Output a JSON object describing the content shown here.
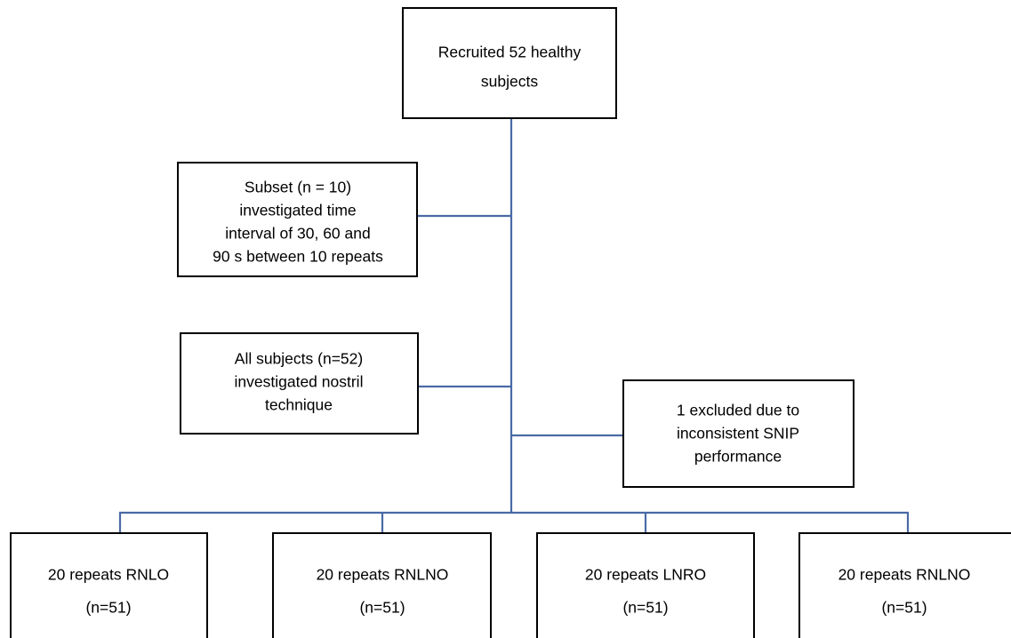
{
  "nodes": [
    {
      "lines": [
        "Recruited 52 healthy",
        "subjects"
      ]
    },
    {
      "lines": [
        "Subset (n = 10)",
        "investigated time",
        "interval of 30, 60 and",
        "90 s between 10 repeats"
      ]
    },
    {
      "lines": [
        "All subjects (n=52)",
        "investigated nostril",
        "technique"
      ]
    },
    {
      "lines": [
        "1 excluded due to",
        "inconsistent SNIP",
        "performance"
      ]
    },
    {
      "lines": [
        "20 repeats RNLO",
        "(n=51)"
      ]
    },
    {
      "lines": [
        "20 repeats RNLNO",
        "(n=51)"
      ]
    },
    {
      "lines": [
        "20 repeats LNRO",
        "(n=51)"
      ]
    },
    {
      "lines": [
        "20 repeats RNLNO",
        "(n=51)"
      ]
    }
  ]
}
